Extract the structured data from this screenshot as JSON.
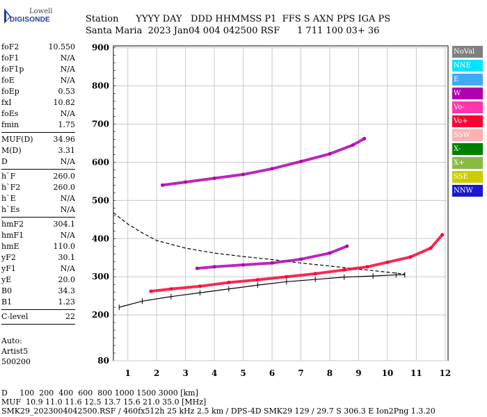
{
  "logo": {
    "top": "Lowell",
    "bottom": "DIGISONDE"
  },
  "header": {
    "labels": "Station      YYYY DAY   DDD HHMMSS P1  FFS S AXN PPS IGA PS",
    "values": "Santa Maria  2023 Jan04 004 042500 RSF      1 711 100 03+ 36"
  },
  "params": {
    "group1": [
      {
        "k": "foF2",
        "v": "10.550"
      },
      {
        "k": "foF1",
        "v": "N/A"
      },
      {
        "k": "foF1p",
        "v": "N/A"
      },
      {
        "k": "foE",
        "v": "N/A"
      },
      {
        "k": "foEp",
        "v": "0.53"
      },
      {
        "k": "fxI",
        "v": "10.82"
      },
      {
        "k": "foEs",
        "v": "N/A"
      },
      {
        "k": "fmin",
        "v": "1.75"
      }
    ],
    "group2": [
      {
        "k": "MUF(D)",
        "v": "34.96"
      },
      {
        "k": "M(D)",
        "v": "3.31"
      },
      {
        "k": "D",
        "v": "N/A"
      }
    ],
    "group3": [
      {
        "k": "h`F",
        "v": "260.0"
      },
      {
        "k": "h`F2",
        "v": "260.0"
      },
      {
        "k": "h`E",
        "v": "N/A"
      },
      {
        "k": "h`Es",
        "v": "N/A"
      }
    ],
    "group4": [
      {
        "k": "hmF2",
        "v": "304.1"
      },
      {
        "k": "hmF1",
        "v": "N/A"
      },
      {
        "k": "hmE",
        "v": "110.0"
      },
      {
        "k": "yF2",
        "v": "30.1"
      },
      {
        "k": "yF1",
        "v": "N/A"
      },
      {
        "k": "yE",
        "v": "20.0"
      },
      {
        "k": "B0",
        "v": "34.3"
      },
      {
        "k": "B1",
        "v": "1.23"
      }
    ],
    "group5": [
      {
        "k": "C-level",
        "v": "22"
      }
    ]
  },
  "auto": {
    "line1": "Auto:",
    "line2": "Artist5",
    "line3": "500200"
  },
  "legend": [
    {
      "label": "NoVal",
      "color": "#808080"
    },
    {
      "label": "NNE",
      "color": "#00e5ff"
    },
    {
      "label": "E",
      "color": "#3fa9f5"
    },
    {
      "label": "W",
      "color": "#b000b0"
    },
    {
      "label": "Vo-",
      "color": "#ff33aa"
    },
    {
      "label": "Vo+",
      "color": "#ff0033"
    },
    {
      "label": "SSW",
      "color": "#ffb0b0"
    },
    {
      "label": "X-",
      "color": "#008000"
    },
    {
      "label": "X+",
      "color": "#88bb44"
    },
    {
      "label": "SSE",
      "color": "#cccc00"
    },
    {
      "label": "NNW",
      "color": "#1a1acc"
    }
  ],
  "footer": {
    "line1": "D     100  200  400  600  800 1000 1500 3000 [km]",
    "line2": "MUF  10.9 11.0 11.6 12.5 13.7 15.6 21.0 35.0 [MHz]",
    "line3": "SMK29_2023004042500.RSF / 460fx512h 25 kHz 2.5 km / DPS-4D SMK29 129 / 29.7 S 306.3 E Ion2Png 1.3.20"
  },
  "chart_data": {
    "type": "scatter",
    "xlim": [
      0.5,
      12.1
    ],
    "ylim": [
      80,
      905
    ],
    "x_ticks": [
      1,
      2,
      3,
      4,
      5,
      6,
      7,
      8,
      9,
      10,
      11,
      12
    ],
    "y_ticks": [
      80,
      200,
      300,
      400,
      500,
      600,
      700,
      800,
      900
    ],
    "grid": true,
    "series": [
      {
        "color": "#ff0033",
        "values": [
          [
            1.8,
            262
          ],
          [
            2.5,
            268
          ],
          [
            3.5,
            275
          ],
          [
            4.5,
            285
          ],
          [
            5.5,
            292
          ],
          [
            6.5,
            300
          ],
          [
            7.5,
            308
          ],
          [
            8.5,
            318
          ],
          [
            9.3,
            326
          ],
          [
            10,
            338
          ],
          [
            10.8,
            352
          ],
          [
            11.5,
            375
          ],
          [
            11.9,
            410
          ]
        ]
      },
      {
        "color": "#b000b0",
        "values": [
          [
            3.4,
            322
          ],
          [
            4,
            326
          ],
          [
            5,
            331
          ],
          [
            6,
            336
          ],
          [
            7,
            346
          ],
          [
            8,
            362
          ],
          [
            8.6,
            380
          ]
        ]
      },
      {
        "color": "#b000b0",
        "values": [
          [
            2.2,
            540
          ],
          [
            3,
            548
          ],
          [
            4,
            558
          ],
          [
            5,
            568
          ],
          [
            6,
            583
          ],
          [
            7,
            602
          ],
          [
            8,
            622
          ],
          [
            8.8,
            645
          ],
          [
            9.2,
            662
          ]
        ]
      }
    ],
    "lines": [
      {
        "style": "solid",
        "values": [
          [
            0.7,
            220
          ],
          [
            1.5,
            236
          ],
          [
            2.5,
            248
          ],
          [
            3.5,
            258
          ],
          [
            4.5,
            268
          ],
          [
            5.5,
            278
          ],
          [
            6.5,
            287
          ],
          [
            7.5,
            293
          ],
          [
            8.5,
            299
          ],
          [
            9.5,
            302
          ],
          [
            10.3,
            305
          ],
          [
            10.6,
            305
          ]
        ]
      },
      {
        "style": "dashed",
        "values": [
          [
            0.5,
            468
          ],
          [
            1,
            438
          ],
          [
            1.5,
            415
          ],
          [
            2,
            395
          ],
          [
            3,
            375
          ],
          [
            4,
            362
          ],
          [
            5,
            353
          ],
          [
            6,
            345
          ],
          [
            7,
            336
          ],
          [
            8,
            328
          ],
          [
            9,
            320
          ],
          [
            10,
            312
          ],
          [
            10.6,
            307
          ]
        ]
      }
    ]
  }
}
